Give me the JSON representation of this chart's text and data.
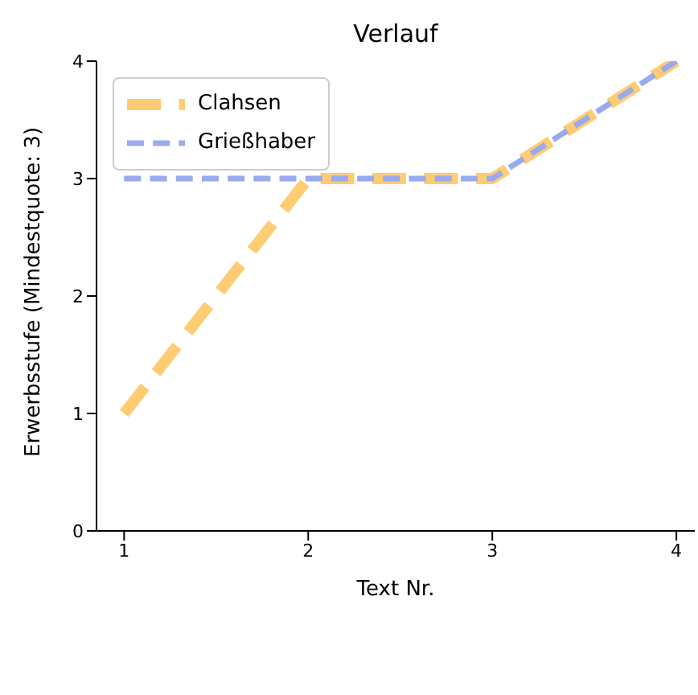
{
  "chart_data": {
    "type": "line",
    "title": "Verlauf",
    "xlabel": "Text Nr.",
    "ylabel": "Erwerbsstufe (Mindestquote: 3)",
    "x": [
      1,
      2,
      3,
      4
    ],
    "series": [
      {
        "name": "Clahsen",
        "color": "#ffcc73",
        "values": [
          1,
          3,
          3,
          4
        ],
        "line_style": "dashed"
      },
      {
        "name": "Grießhaber",
        "color": "#99aaee",
        "values": [
          3,
          3,
          3,
          4
        ],
        "line_style": "dashed"
      }
    ],
    "xlim": [
      0.85,
      4.1
    ],
    "xticks": [
      1,
      2,
      3,
      4
    ],
    "ylim": [
      0,
      4
    ],
    "yticks": [
      0,
      1,
      2,
      3,
      4
    ],
    "grid": false,
    "legend": "top left",
    "marker": "none"
  }
}
